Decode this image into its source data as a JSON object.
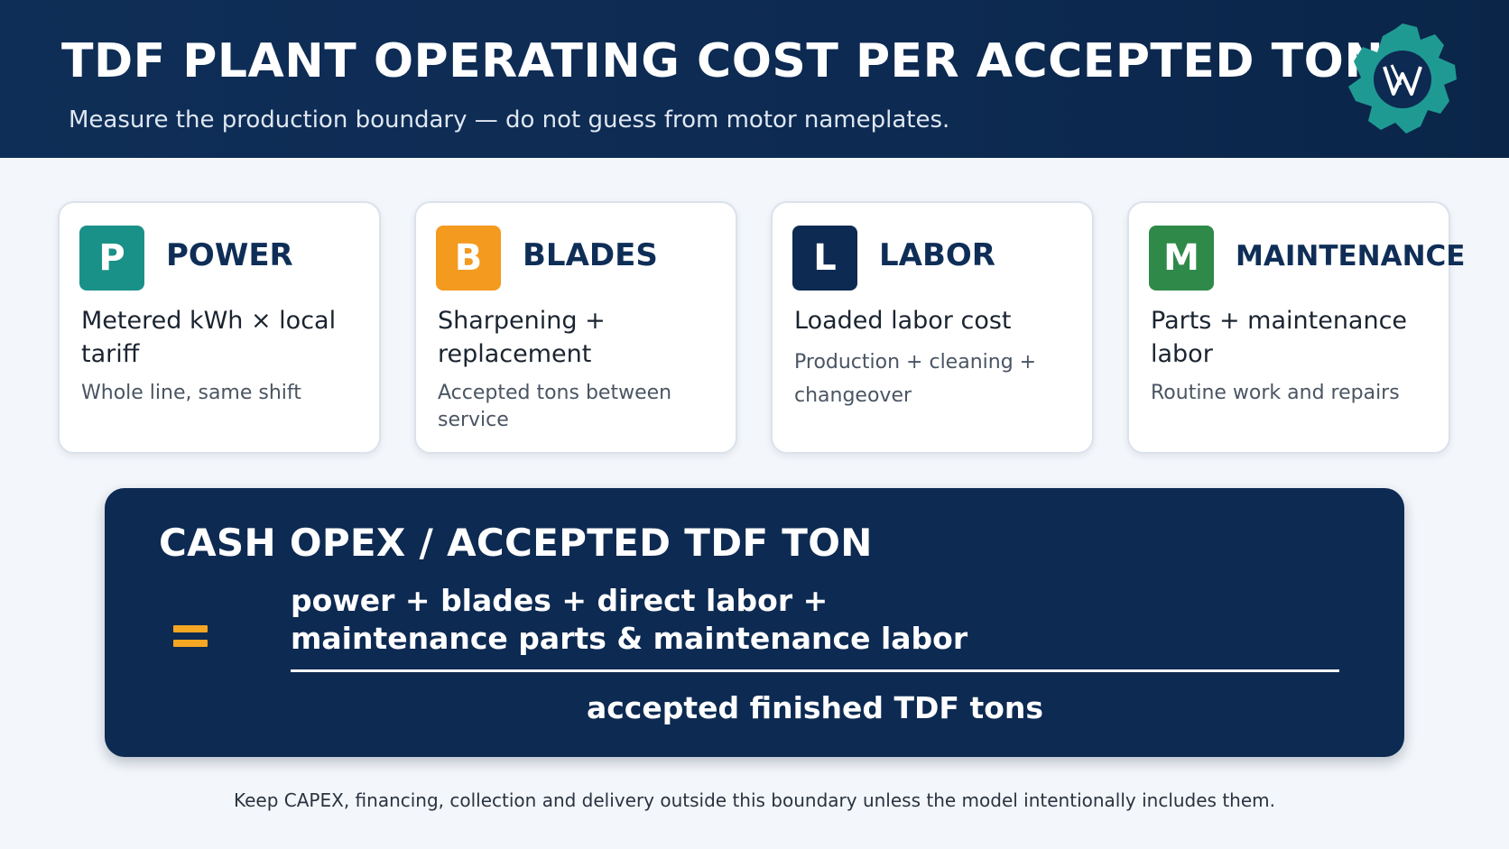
{
  "header": {
    "title": "TDF PLANT OPERATING COST PER ACCEPTED TON",
    "subtitle": "Measure the production boundary — do not guess from motor nameplates.",
    "logo_icon": "gear-w-logo-icon",
    "logo_colors": {
      "gear": "#1f9a93",
      "center": "#0d2a52"
    }
  },
  "cards": [
    {
      "badge": "P",
      "badge_color": "#1a9188",
      "name": "POWER",
      "heading": "Metered kWh × local tariff",
      "detail": "Whole line, same shift"
    },
    {
      "badge": "B",
      "badge_color": "#f39a1f",
      "name": "BLADES",
      "heading": "Sharpening + replacement",
      "detail": "Accepted tons between service"
    },
    {
      "badge": "L",
      "badge_color": "#0d2a52",
      "name": "LABOR",
      "heading": "Loaded labor cost",
      "detail": "Production + cleaning + changeover"
    },
    {
      "badge": "M",
      "badge_color": "#2f8a4a",
      "name": "MAINTENANCE",
      "heading": "Parts + maintenance labor",
      "detail": "Routine work and repairs"
    }
  ],
  "formula": {
    "title": "CASH OPEX / ACCEPTED TDF TON",
    "numerator_line1": "power + blades + direct labor +",
    "numerator_line2": "maintenance parts & maintenance labor",
    "denominator": "accepted finished TDF tons",
    "equals_color": "#f5a623"
  },
  "footnote": "Keep CAPEX, financing, collection and delivery outside this boundary unless the model intentionally includes them."
}
